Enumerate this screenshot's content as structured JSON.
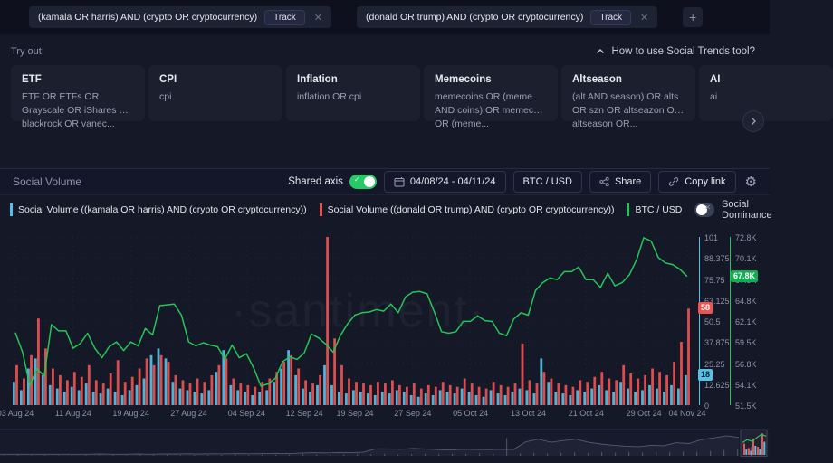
{
  "topbar": {
    "chips": [
      {
        "query": "(kamala OR harris) AND (crypto OR cryptocurrency)",
        "action_label": "Track"
      },
      {
        "query": "(donald OR trump) AND (crypto OR cryptocurrency)",
        "action_label": "Track"
      }
    ],
    "add_label": "+"
  },
  "tryout": {
    "label": "Try out",
    "help_link": "How to use Social Trends tool?",
    "cards": [
      {
        "title": "ETF",
        "desc": "ETF OR ETFs OR Grayscale OR iShares OR blackrock OR vanec..."
      },
      {
        "title": "CPI",
        "desc": "cpi"
      },
      {
        "title": "Inflation",
        "desc": "inflation OR cpi"
      },
      {
        "title": "Memecoins",
        "desc": "memecoins OR (meme AND coins) OR memecoin OR (meme..."
      },
      {
        "title": "Altseason",
        "desc": "(alt AND season) OR alts OR szn OR altseazon OR altseason OR..."
      },
      {
        "title": "AI",
        "desc": "ai"
      }
    ]
  },
  "toolbar": {
    "title": "Social Volume",
    "shared_axis_label": "Shared axis",
    "shared_axis_on": true,
    "date_range": "04/08/24 - 04/11/24",
    "asset_button": "BTC / USD",
    "share_label": "Share",
    "copy_link_label": "Copy link"
  },
  "legend": {
    "items": [
      {
        "label": "Social Volume ((kamala OR harris) AND (crypto OR cryptocurrency))",
        "color": "#57c0e6"
      },
      {
        "label": "Social Volume ((donald OR trump) AND (crypto OR cryptocurrency))",
        "color": "#ef5350"
      },
      {
        "label": "BTC / USD",
        "color": "#26c559"
      }
    ],
    "social_dominance_label": "Social Dominance",
    "social_dominance_on": false
  },
  "watermark": "·santiment·",
  "chart_data": {
    "type": "bar+line",
    "x_labels": [
      {
        "label": "03 Aug 24",
        "day": 0
      },
      {
        "label": "11 Aug 24",
        "day": 8
      },
      {
        "label": "19 Aug 24",
        "day": 16
      },
      {
        "label": "27 Aug 24",
        "day": 24
      },
      {
        "label": "04 Sep 24",
        "day": 32
      },
      {
        "label": "12 Sep 24",
        "day": 40
      },
      {
        "label": "19 Sep 24",
        "day": 47
      },
      {
        "label": "27 Sep 24",
        "day": 55
      },
      {
        "label": "05 Oct 24",
        "day": 63
      },
      {
        "label": "13 Oct 24",
        "day": 71
      },
      {
        "label": "21 Oct 24",
        "day": 79
      },
      {
        "label": "29 Oct 24",
        "day": 87
      },
      {
        "label": "04 Nov 24",
        "day": 93
      }
    ],
    "left_axis": {
      "max": 101,
      "ticks": [
        "101",
        "88.375",
        "75.75",
        "63.125",
        "50.5",
        "37.875",
        "25.25",
        "12.625",
        "0"
      ]
    },
    "right_axis": {
      "min": 51.5,
      "max": 72.8,
      "ticks": [
        "72.8K",
        "70.1K",
        "67.5K",
        "64.8K",
        "62.1K",
        "59.5K",
        "56.8K",
        "54.1K",
        "51.5K"
      ]
    },
    "series": [
      {
        "name": "Social Volume ((kamala OR harris) AND (crypto OR cryptocurrency))",
        "type": "bar",
        "color": "#57c0e6",
        "values": [
          14,
          9,
          22,
          28,
          18,
          12,
          10,
          8,
          11,
          9,
          13,
          8,
          7,
          10,
          8,
          6,
          9,
          12,
          16,
          30,
          34,
          28,
          14,
          10,
          9,
          8,
          7,
          9,
          20,
          33,
          12,
          9,
          8,
          6,
          8,
          9,
          14,
          22,
          33,
          18,
          10,
          8,
          12,
          24,
          12,
          8,
          7,
          9,
          8,
          7,
          6,
          8,
          7,
          9,
          8,
          6,
          5,
          7,
          6,
          9,
          8,
          7,
          10,
          8,
          6,
          5,
          9,
          7,
          6,
          8,
          10,
          9,
          7,
          28,
          14,
          8,
          7,
          6,
          9,
          8,
          10,
          12,
          9,
          8,
          14,
          10,
          8,
          9,
          12,
          10,
          8,
          12,
          10,
          18
        ]
      },
      {
        "name": "Social Volume ((donald OR trump) AND (crypto OR cryptocurrency))",
        "type": "bar",
        "color": "#ef5350",
        "values": [
          24,
          16,
          30,
          52,
          34,
          22,
          18,
          15,
          20,
          17,
          24,
          15,
          13,
          19,
          27,
          14,
          17,
          22,
          28,
          24,
          30,
          26,
          18,
          15,
          13,
          16,
          14,
          18,
          24,
          28,
          16,
          13,
          12,
          11,
          14,
          16,
          20,
          26,
          30,
          22,
          15,
          13,
          18,
          101,
          40,
          24,
          16,
          14,
          13,
          12,
          14,
          13,
          15,
          12,
          11,
          13,
          10,
          12,
          11,
          14,
          12,
          11,
          16,
          13,
          11,
          10,
          14,
          12,
          11,
          13,
          37,
          15,
          13,
          20,
          16,
          13,
          12,
          11,
          15,
          14,
          17,
          20,
          16,
          15,
          24,
          19,
          16,
          18,
          22,
          20,
          18,
          26,
          38,
          58
        ]
      },
      {
        "name": "BTC / USD",
        "type": "line",
        "color": "#26c559",
        "values": [
          60.7,
          58.2,
          54.0,
          56.1,
          55.2,
          61.7,
          60.9,
          60.9,
          58.7,
          59.3,
          60.6,
          58.7,
          57.5,
          58.9,
          59.5,
          58.4,
          59.5,
          59.0,
          61.2,
          60.4,
          64.1,
          64.2,
          64.3,
          62.9,
          59.5,
          59.0,
          59.4,
          59.1,
          58.9,
          57.3,
          59.1,
          57.5,
          58.0,
          56.2,
          53.9,
          54.2,
          54.9,
          57.0,
          57.6,
          57.3,
          58.1,
          60.5,
          60.0,
          59.2,
          58.2,
          60.3,
          61.8,
          62.9,
          63.2,
          63.3,
          63.6,
          63.4,
          64.3,
          63.2,
          65.2,
          65.8,
          65.9,
          65.6,
          63.3,
          60.8,
          60.6,
          60.8,
          62.1,
          62.1,
          62.8,
          62.2,
          62.1,
          60.6,
          60.3,
          62.4,
          63.2,
          62.9,
          66.0,
          67.0,
          67.6,
          67.4,
          68.4,
          68.4,
          69.0,
          67.4,
          67.4,
          66.4,
          68.2,
          66.6,
          67.0,
          68.0,
          69.9,
          72.7,
          72.3,
          70.2,
          69.5,
          69.3,
          68.7,
          67.8
        ]
      }
    ],
    "badges": {
      "trump": {
        "text": "58",
        "value": 58
      },
      "kamala": {
        "text": "18",
        "value": 18
      },
      "btc": {
        "text": "67.8K",
        "value": 67.8
      }
    },
    "navigator": {
      "line": [
        0.03,
        0.03,
        0.03,
        0.03,
        0.03,
        0.03,
        0.03,
        0.03,
        0.04,
        0.03,
        0.03,
        0.04,
        0.03,
        0.04,
        0.04,
        0.05,
        0.04,
        0.05,
        0.05,
        0.06,
        0.05,
        0.06,
        0.07,
        0.06,
        0.08,
        0.1,
        0.09,
        0.11,
        0.1,
        0.12,
        0.28,
        0.28,
        0.26,
        0.3,
        0.27,
        0.24,
        0.22,
        0.26,
        0.25,
        0.24,
        0.26,
        0.25,
        0.6,
        0.72,
        0.58,
        0.66,
        0.72,
        0.58,
        0.5,
        0.44,
        0.4,
        0.38,
        0.44,
        0.42,
        0.56,
        0.52,
        0.7,
        0.78,
        0.88,
        0.8
      ],
      "bars": [
        0.02,
        0.03,
        0.02,
        0.03,
        0.02,
        0.03,
        0.03,
        0.02,
        0.03,
        0.02,
        0.03,
        0.03,
        0.04,
        0.03,
        0.04,
        0.03,
        0.04,
        0.05,
        0.04,
        0.05,
        0.04,
        0.05,
        0.06,
        0.05,
        0.06,
        0.05,
        0.07,
        0.06,
        0.08,
        0.06,
        0.07,
        0.08,
        0.07,
        0.09,
        0.08,
        0.1,
        0.09,
        0.75,
        0.1,
        0.12,
        0.1,
        0.12,
        0.14,
        0.12,
        0.15,
        0.13,
        0.16,
        0.14,
        0.17,
        0.15,
        0.18,
        0.16,
        0.2,
        0.24,
        0.3,
        0.38
      ],
      "selection": {
        "green_line": [
          0.52,
          0.66,
          0.58,
          0.74,
          0.9,
          0.82
        ],
        "red_bars": [
          0.5,
          0.3,
          0.72,
          0.36,
          0.95
        ],
        "cyan_bars": [
          0.24,
          0.18,
          0.4,
          0.28,
          0.58
        ]
      }
    }
  }
}
